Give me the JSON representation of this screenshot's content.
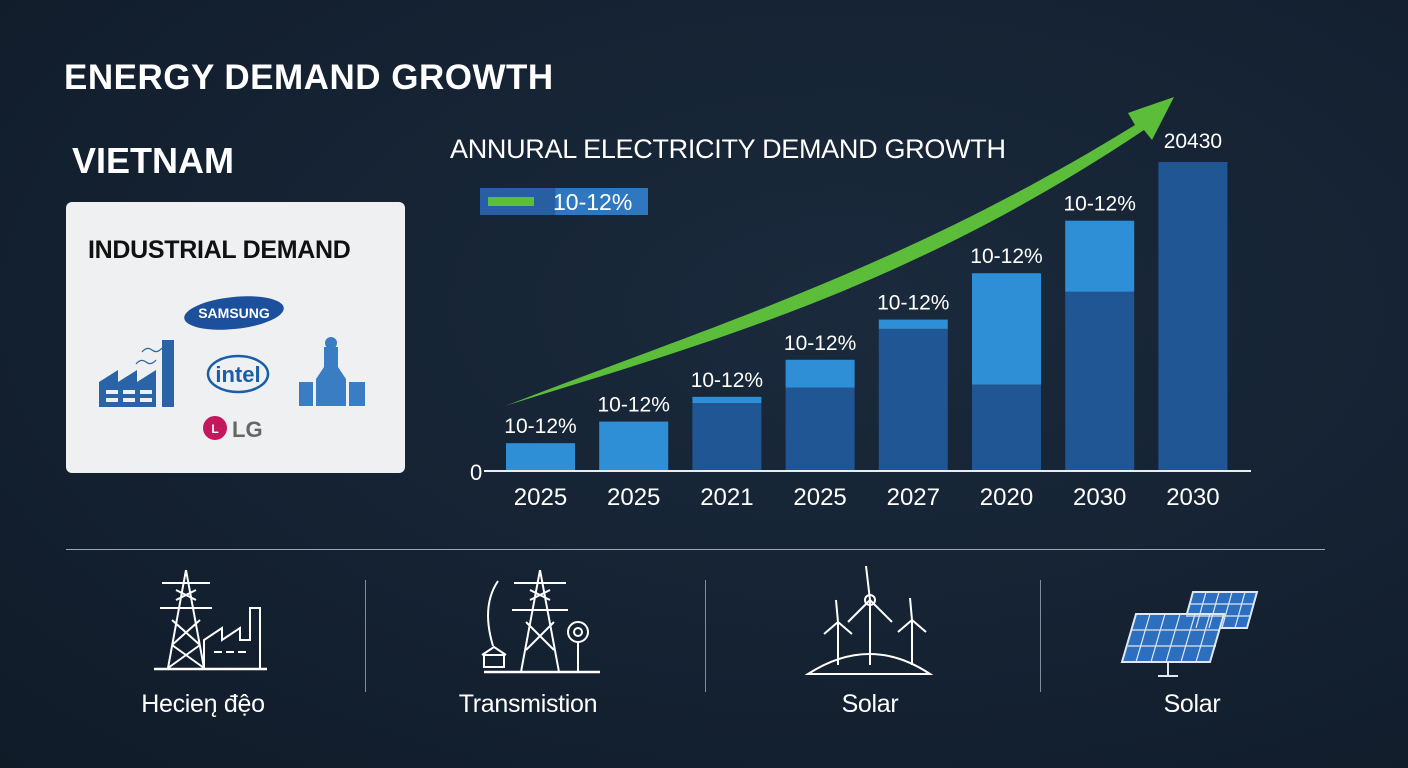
{
  "header": {
    "title": "ENERGY DEMAND GROWTH",
    "country": "VIETNAM"
  },
  "industrial_card": {
    "title": "INDUSTRIAL DEMAND",
    "logos": [
      "SAMSUNG",
      "intel",
      "LG"
    ],
    "icons": [
      "factory-icon",
      "industrial-plant-icon"
    ]
  },
  "chart_data": {
    "type": "bar",
    "title": "ANNURAL ELECTRICITY DEMAND GROWTH",
    "legend": {
      "label": "10-12%",
      "color": "#5cbd3b",
      "placement": "top-left"
    },
    "categories": [
      "2025",
      "2025",
      "2021",
      "2025",
      "2027",
      "2020",
      "2030",
      "2030"
    ],
    "data_labels": [
      "10-12%",
      "10-12%",
      "10-12%",
      "10-12%",
      "10-12%",
      "10-12%",
      "10-12%",
      "20430"
    ],
    "series": [
      {
        "values": [
          0,
          0,
          22,
          27,
          46,
          28,
          58,
          100
        ],
        "color": "#215694"
      },
      {
        "values": [
          9,
          16,
          2,
          9,
          3,
          36,
          23,
          0
        ],
        "color": "#2f8fd6"
      }
    ],
    "totals": [
      9,
      16,
      24,
      36,
      49,
      64,
      81,
      100
    ],
    "y_tick_labels": [
      "0"
    ],
    "ylim": [
      0,
      100
    ],
    "grid": false,
    "trend_arrow_color": "#5cbd3b"
  },
  "bottom": {
    "items": [
      {
        "label": "Hecien̨ đệo",
        "icon": "power-tower-factory-icon"
      },
      {
        "label": "Transmistion",
        "icon": "transmission-tower-icon"
      },
      {
        "label": "Solar",
        "icon": "wind-turbine-icon"
      },
      {
        "label": "Solar",
        "icon": "solar-panel-icon"
      }
    ]
  }
}
